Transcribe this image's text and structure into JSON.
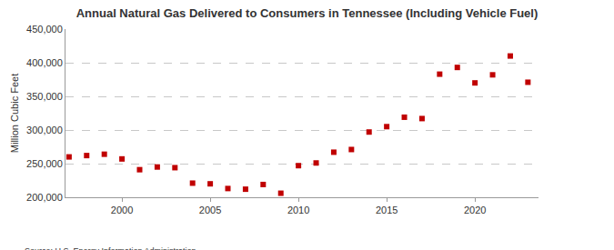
{
  "chart_data": {
    "type": "scatter",
    "title": "Annual Natural Gas Delivered to Consumers in Tennessee (Including Vehicle Fuel)",
    "y_label": "Million Cubic Feet",
    "source": "Source: U.S. Energy Information Administration",
    "x": [
      1997,
      1998,
      1999,
      2000,
      2001,
      2002,
      2003,
      2004,
      2005,
      2006,
      2007,
      2008,
      2009,
      2010,
      2011,
      2012,
      2013,
      2014,
      2015,
      2016,
      2017,
      2018,
      2019,
      2020,
      2021,
      2022,
      2023
    ],
    "values": [
      260000,
      262000,
      264000,
      257000,
      241000,
      245000,
      244000,
      221000,
      220000,
      213000,
      212000,
      219000,
      206000,
      247000,
      251000,
      267000,
      271000,
      297000,
      305000,
      319000,
      317000,
      383000,
      393000,
      370000,
      382000,
      410000,
      371000
    ],
    "color": "#c00000",
    "marker": "square",
    "xlim": [
      1996.8,
      2023.6
    ],
    "xticks": [
      2000,
      2005,
      2010,
      2015,
      2020
    ],
    "ylim": [
      200000,
      450000
    ],
    "yticks": [
      {
        "value": 200000,
        "label": "200,000"
      },
      {
        "value": 250000,
        "label": "250,000"
      },
      {
        "value": 300000,
        "label": "300,000"
      },
      {
        "value": 350000,
        "label": "350,000"
      },
      {
        "value": 400000,
        "label": "400,000"
      },
      {
        "value": 450000,
        "label": "450,000"
      }
    ],
    "grid": true
  }
}
